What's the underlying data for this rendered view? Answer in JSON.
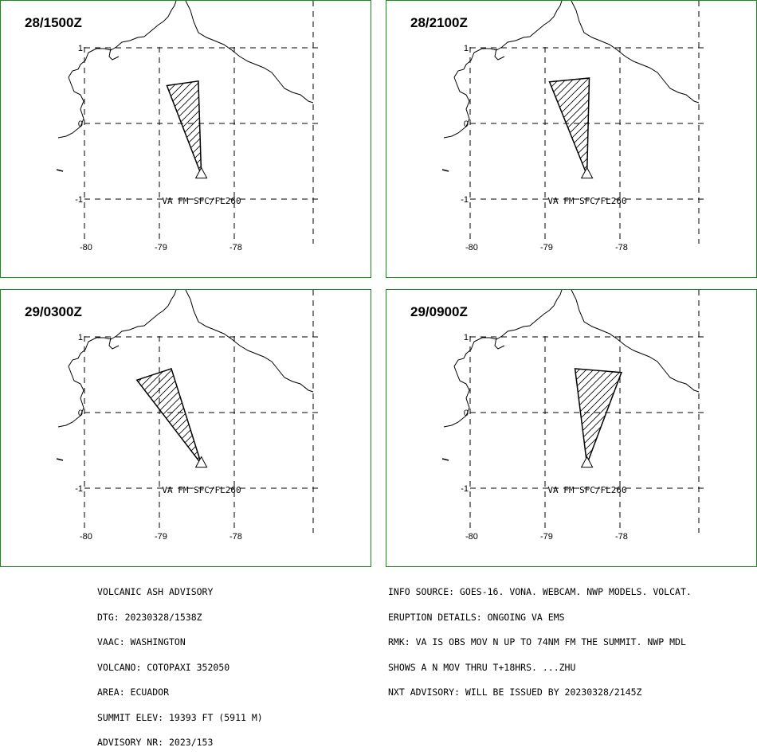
{
  "colors": {
    "frame": "#1a8a1a",
    "ink": "#000000",
    "background": "#ffffff"
  },
  "axes": {
    "x_ticks": [
      {
        "label": "-80",
        "value": -80
      },
      {
        "label": "-79",
        "value": -79
      },
      {
        "label": "-78",
        "value": -78
      }
    ],
    "y_ticks": [
      {
        "label": "1",
        "value": 1
      },
      {
        "label": "0",
        "value": 0
      },
      {
        "label": "-1",
        "value": -1
      }
    ]
  },
  "volcano": {
    "lon": -78.44,
    "lat": -0.68
  },
  "panels": [
    {
      "time": "28/1500Z",
      "ash_label": "VA FM SFC/FL260",
      "ash_polygon": [
        [
          -78.44,
          -0.68
        ],
        [
          -78.48,
          0.56
        ],
        [
          -78.9,
          0.5
        ]
      ]
    },
    {
      "time": "28/2100Z",
      "ash_label": "VA FM SFC/FL260",
      "ash_polygon": [
        [
          -78.44,
          -0.68
        ],
        [
          -78.41,
          0.6
        ],
        [
          -78.94,
          0.55
        ]
      ]
    },
    {
      "time": "29/0300Z",
      "ash_label": "VA FM SFC/FL260",
      "ash_polygon": [
        [
          -78.44,
          -0.68
        ],
        [
          -78.84,
          0.58
        ],
        [
          -79.3,
          0.43
        ]
      ]
    },
    {
      "time": "29/0900Z",
      "ash_label": "VA FM SFC/FL260",
      "ash_polygon": [
        [
          -78.44,
          -0.68
        ],
        [
          -78.6,
          0.58
        ],
        [
          -77.98,
          0.53
        ]
      ]
    }
  ],
  "advisory_left": [
    "VOLCANIC ASH ADVISORY",
    "DTG: 20230328/1538Z",
    "VAAC: WASHINGTON",
    "VOLCANO: COTOPAXI 352050",
    "AREA: ECUADOR",
    "SUMMIT ELEV: 19393 FT (5911 M)",
    "ADVISORY NR: 2023/153"
  ],
  "advisory_right": [
    "INFO SOURCE: GOES-16. VONA. WEBCAM. NWP MODELS. VOLCAT.",
    "ERUPTION DETAILS: ONGOING VA EMS",
    "RMK: VA IS OBS MOV N UP TO 74NM FM THE SUMMIT. NWP MDL",
    "SHOWS A N MOV THRU T+18HRS. ...ZHU",
    "NXT ADVISORY: WILL BE ISSUED BY 20230328/2145Z"
  ]
}
